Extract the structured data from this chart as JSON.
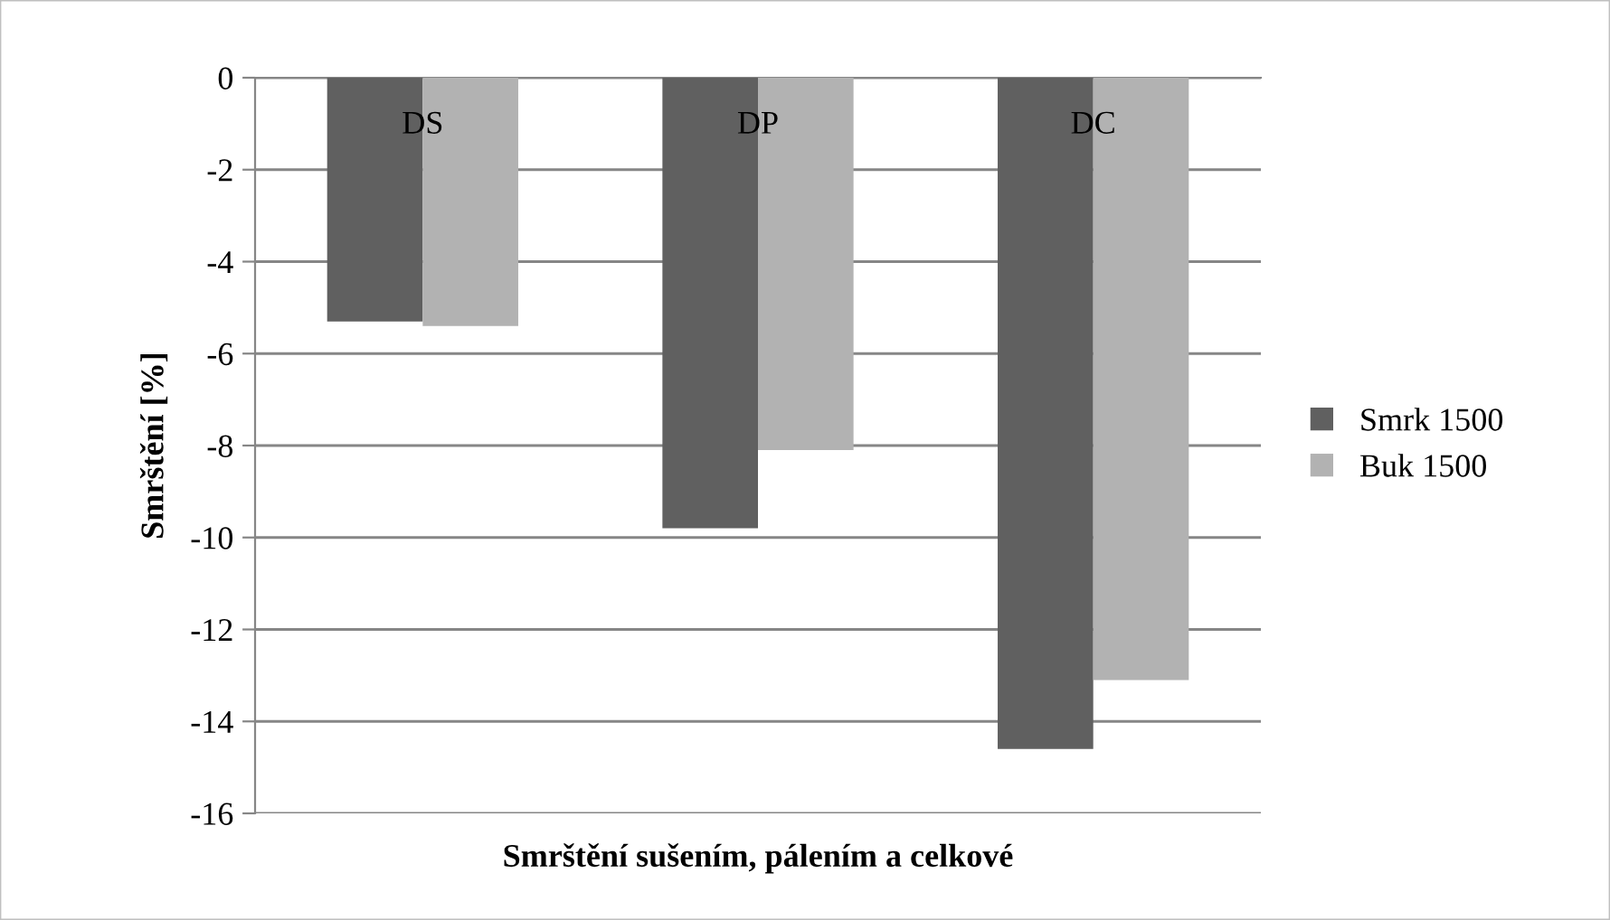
{
  "chart_data": {
    "type": "bar",
    "xlabel": "Smrštění sušením, pálením a celkové",
    "ylabel": "Smrštění [%]",
    "categories": [
      "DS",
      "DP",
      "DC"
    ],
    "series": [
      {
        "name": "Smrk 1500",
        "color": "#606060",
        "values": [
          -5.3,
          -9.8,
          -14.6
        ]
      },
      {
        "name": "Buk 1500",
        "color": "#b2b2b2",
        "values": [
          -5.4,
          -8.1,
          -13.1
        ]
      }
    ],
    "ylim": [
      -16,
      0
    ],
    "yticks": [
      0,
      -2,
      -4,
      -6,
      -8,
      -10,
      -12,
      -14,
      -16
    ],
    "grid": "y",
    "legend": "right"
  }
}
